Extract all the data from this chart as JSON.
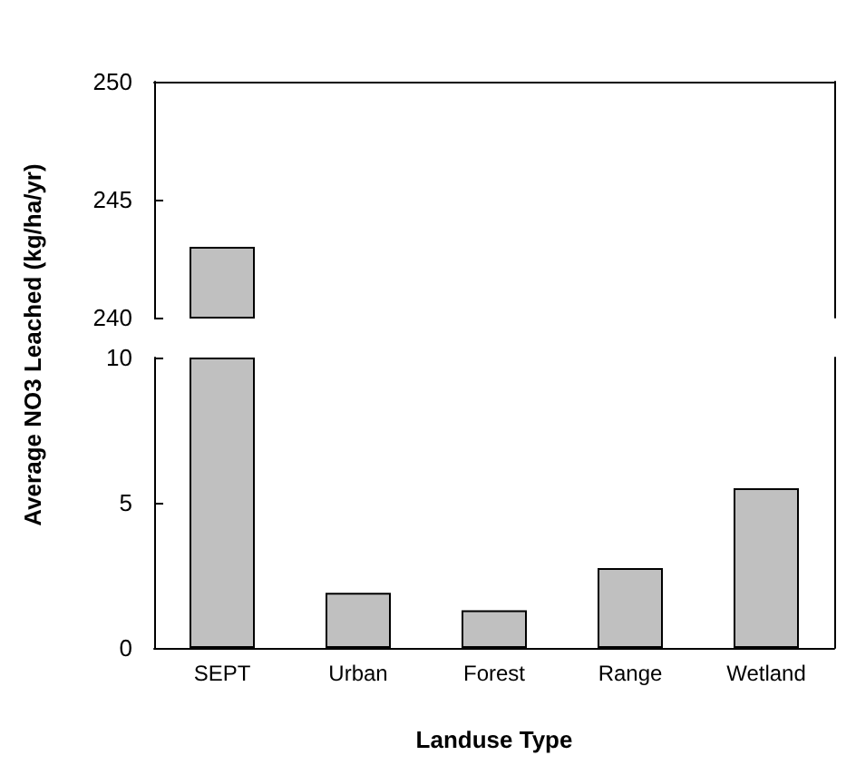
{
  "chart_data": [
    {
      "type": "bar",
      "categories": [
        null,
        null,
        null,
        null,
        null
      ],
      "values": [
        243,
        null,
        null,
        null,
        null
      ],
      "color": "#c0c0c0",
      "ylim": [
        240,
        250
      ],
      "yticks": [
        240,
        245,
        250
      ],
      "tick_labels": "y"
    },
    {
      "type": "bar",
      "categories": [
        "SEPT",
        "Urban",
        "Forest",
        "Range",
        "Wetland"
      ],
      "values": [
        10,
        1.9,
        1.3,
        2.75,
        5.5
      ],
      "color": "#c0c0c0",
      "ylim": [
        0,
        10
      ],
      "yticks": [
        0,
        5,
        10
      ],
      "xlabel": "Landuse Type",
      "ylabel": "Average NO3 Leached (kg/ha/yr)"
    }
  ]
}
